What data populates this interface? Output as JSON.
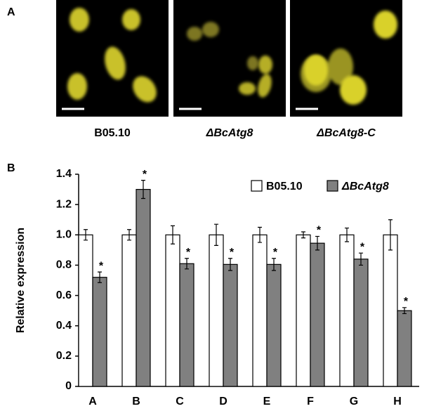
{
  "panel_a": {
    "label": "A",
    "images": [
      {
        "caption": "B05.10"
      },
      {
        "caption": "ΔBcAtg8"
      },
      {
        "caption": "ΔBcAtg8-C"
      }
    ]
  },
  "panel_b_label": "B",
  "chart_data": {
    "type": "bar",
    "ylabel": "Relative expression",
    "categories": [
      "A",
      "B",
      "C",
      "D",
      "E",
      "F",
      "G",
      "H"
    ],
    "series": [
      {
        "name": "B05.10",
        "color": "#ffffff",
        "values": [
          1.0,
          1.0,
          1.0,
          1.0,
          1.0,
          1.0,
          1.0,
          1.0
        ],
        "errors": [
          0.035,
          0.035,
          0.06,
          0.07,
          0.05,
          0.02,
          0.045,
          0.1
        ]
      },
      {
        "name": "ΔBcAtg8",
        "color": "#808080",
        "values": [
          0.72,
          1.3,
          0.81,
          0.805,
          0.805,
          0.945,
          0.84,
          0.5
        ],
        "errors": [
          0.035,
          0.06,
          0.035,
          0.04,
          0.04,
          0.045,
          0.04,
          0.02
        ],
        "annotations": [
          "*",
          "*",
          "*",
          "*",
          "*",
          "*",
          "*",
          "*"
        ]
      }
    ],
    "ylim": [
      0,
      1.4
    ],
    "yticks": [
      0,
      0.2,
      0.4,
      0.6,
      0.8,
      {
        "value": 1,
        "label": "1.0"
      },
      1.2,
      1.4
    ],
    "legend": "upper right"
  }
}
